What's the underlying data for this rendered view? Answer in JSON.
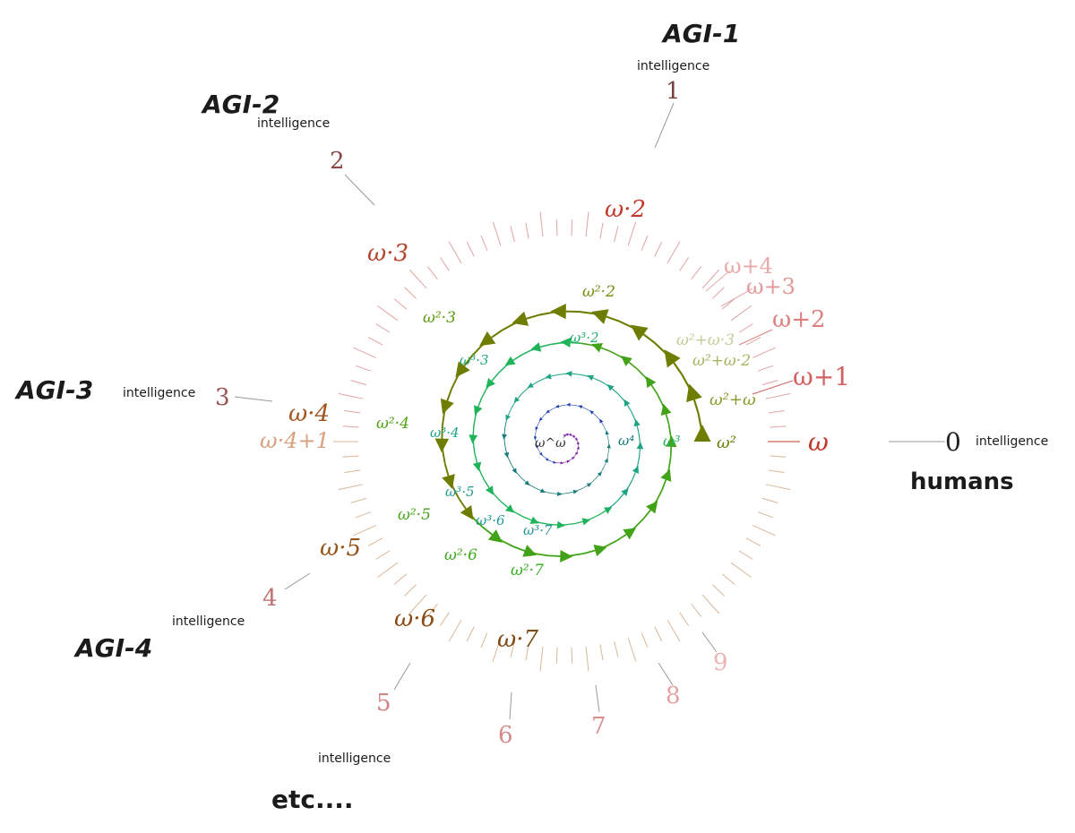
{
  "notes": {
    "agi1": "AGI-1",
    "agi2": "AGI-2",
    "agi3": "AGI-3",
    "agi4": "AGI-4",
    "humans": "humans",
    "etc": "etc....",
    "intelligence": "intelligence"
  },
  "outer_numbers": [
    "0",
    "1",
    "2",
    "3",
    "4",
    "5",
    "6",
    "7",
    "8",
    "9"
  ],
  "omega_labels": [
    "ω",
    "ω+1",
    "ω+2",
    "ω+3",
    "ω+4",
    "ω·2",
    "ω·3",
    "ω·4",
    "ω·4+1",
    "ω·5",
    "ω·6",
    "ω·7"
  ],
  "omega2_labels": [
    "ω²",
    "ω²+ω",
    "ω²+ω·2",
    "ω²+ω·3",
    "ω²·2",
    "ω²·3",
    "ω²·4",
    "ω²·5",
    "ω²·6",
    "ω²·7"
  ],
  "omega3_labels": [
    "ω³",
    "ω³·2",
    "ω³·3",
    "ω³·4",
    "ω³·5",
    "ω³·6",
    "ω³·7"
  ],
  "inner_labels": [
    "ω⁴",
    "ω^ω"
  ],
  "colors": {
    "outer": "#d98585",
    "omega": "#c0392b",
    "omega_brown": "#8a4a12",
    "omega2": "#6e7d00",
    "omega2_green": "#43a318",
    "omega3": "#1fb35a",
    "teal": "#167a7a",
    "blue": "#1b3fb0",
    "purple": "#7a1fa8"
  }
}
